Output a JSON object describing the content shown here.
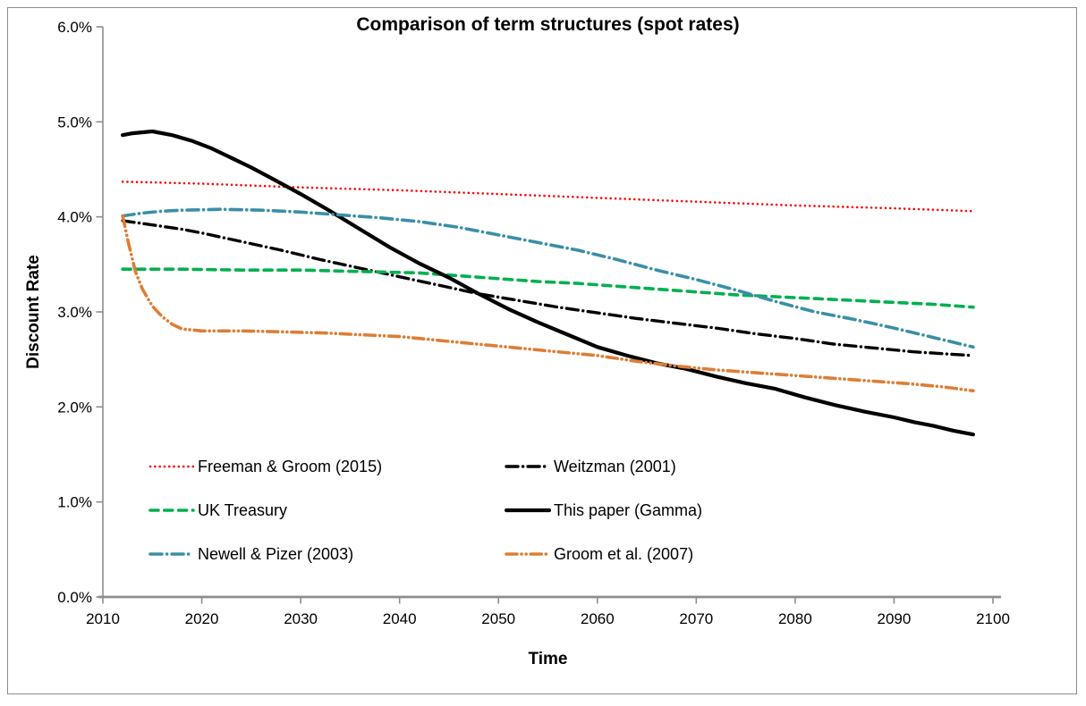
{
  "canvas": {
    "background": "#FFFFFF",
    "border_color": "#8C8C8C",
    "axis_color": "#8E8E8E",
    "tick_label_color": "#000000"
  },
  "chart_data": {
    "type": "line",
    "title": "Comparison of term structures (spot rates)",
    "xlabel": "Time",
    "ylabel": "Discount Rate",
    "xlim": [
      2010,
      2100
    ],
    "ylim": [
      0,
      6
    ],
    "grid": false,
    "legend_position": "inside bottom-left, two columns",
    "x_ticks": [
      2010,
      2020,
      2030,
      2040,
      2050,
      2060,
      2070,
      2080,
      2090,
      2100
    ],
    "x_tick_labels": [
      "2010",
      "2020",
      "2030",
      "2040",
      "2050",
      "2060",
      "2070",
      "2080",
      "2090",
      "2100"
    ],
    "y_ticks": [
      0,
      1,
      2,
      3,
      4,
      5,
      6
    ],
    "y_tick_labels": [
      "0.0%",
      "1.0%",
      "2.0%",
      "3.0%",
      "4.0%",
      "5.0%",
      "6.0%"
    ],
    "series": [
      {
        "name": "Freeman & Groom (2015)",
        "color": "#FF0000",
        "style": "dotted",
        "width": 2.6,
        "points": [
          [
            2012,
            4.37
          ],
          [
            2020,
            4.35
          ],
          [
            2030,
            4.31
          ],
          [
            2040,
            4.28
          ],
          [
            2050,
            4.24
          ],
          [
            2060,
            4.2
          ],
          [
            2070,
            4.16
          ],
          [
            2080,
            4.12
          ],
          [
            2090,
            4.09
          ],
          [
            2098,
            4.06
          ]
        ]
      },
      {
        "name": "Weitzman (2001)",
        "color": "#000000",
        "style": "dash-dot",
        "width": 3.4,
        "points": [
          [
            2012,
            3.96
          ],
          [
            2014,
            3.93
          ],
          [
            2016,
            3.9
          ],
          [
            2018,
            3.87
          ],
          [
            2020,
            3.83
          ],
          [
            2024,
            3.74
          ],
          [
            2028,
            3.65
          ],
          [
            2032,
            3.55
          ],
          [
            2036,
            3.46
          ],
          [
            2040,
            3.37
          ],
          [
            2044,
            3.28
          ],
          [
            2048,
            3.19
          ],
          [
            2052,
            3.12
          ],
          [
            2056,
            3.05
          ],
          [
            2060,
            2.99
          ],
          [
            2064,
            2.93
          ],
          [
            2068,
            2.88
          ],
          [
            2072,
            2.83
          ],
          [
            2076,
            2.77
          ],
          [
            2080,
            2.72
          ],
          [
            2084,
            2.66
          ],
          [
            2088,
            2.62
          ],
          [
            2092,
            2.58
          ],
          [
            2095,
            2.56
          ],
          [
            2098,
            2.54
          ]
        ]
      },
      {
        "name": "UK Treasury",
        "color": "#00B050",
        "style": "dashed",
        "width": 3.6,
        "points": [
          [
            2012,
            3.45
          ],
          [
            2018,
            3.45
          ],
          [
            2024,
            3.44
          ],
          [
            2030,
            3.44
          ],
          [
            2034,
            3.43
          ],
          [
            2038,
            3.42
          ],
          [
            2042,
            3.41
          ],
          [
            2046,
            3.38
          ],
          [
            2050,
            3.35
          ],
          [
            2054,
            3.32
          ],
          [
            2058,
            3.3
          ],
          [
            2062,
            3.27
          ],
          [
            2066,
            3.24
          ],
          [
            2070,
            3.21
          ],
          [
            2074,
            3.18
          ],
          [
            2078,
            3.16
          ],
          [
            2082,
            3.14
          ],
          [
            2086,
            3.12
          ],
          [
            2090,
            3.1
          ],
          [
            2094,
            3.08
          ],
          [
            2098,
            3.05
          ]
        ]
      },
      {
        "name": "This paper (Gamma)",
        "color": "#000000",
        "style": "solid",
        "width": 4.2,
        "points": [
          [
            2012,
            4.86
          ],
          [
            2013,
            4.88
          ],
          [
            2015,
            4.9
          ],
          [
            2017,
            4.86
          ],
          [
            2019,
            4.8
          ],
          [
            2021,
            4.72
          ],
          [
            2023,
            4.62
          ],
          [
            2025,
            4.52
          ],
          [
            2027,
            4.41
          ],
          [
            2030,
            4.24
          ],
          [
            2033,
            4.06
          ],
          [
            2036,
            3.87
          ],
          [
            2039,
            3.68
          ],
          [
            2042,
            3.51
          ],
          [
            2045,
            3.36
          ],
          [
            2048,
            3.19
          ],
          [
            2051,
            3.03
          ],
          [
            2054,
            2.89
          ],
          [
            2057,
            2.76
          ],
          [
            2060,
            2.63
          ],
          [
            2063,
            2.54
          ],
          [
            2066,
            2.46
          ],
          [
            2069,
            2.4
          ],
          [
            2072,
            2.32
          ],
          [
            2075,
            2.25
          ],
          [
            2078,
            2.19
          ],
          [
            2081,
            2.1
          ],
          [
            2084,
            2.02
          ],
          [
            2087,
            1.95
          ],
          [
            2090,
            1.89
          ],
          [
            2092,
            1.84
          ],
          [
            2094,
            1.8
          ],
          [
            2096,
            1.75
          ],
          [
            2098,
            1.71
          ]
        ]
      },
      {
        "name": "Newell & Pizer (2003)",
        "color": "#3A8FA6",
        "style": "dash-dot",
        "width": 3.6,
        "points": [
          [
            2012,
            4.01
          ],
          [
            2014,
            4.04
          ],
          [
            2016,
            4.06
          ],
          [
            2018,
            4.07
          ],
          [
            2022,
            4.08
          ],
          [
            2026,
            4.07
          ],
          [
            2030,
            4.05
          ],
          [
            2034,
            4.02
          ],
          [
            2038,
            3.99
          ],
          [
            2042,
            3.95
          ],
          [
            2046,
            3.89
          ],
          [
            2050,
            3.81
          ],
          [
            2054,
            3.73
          ],
          [
            2058,
            3.65
          ],
          [
            2062,
            3.55
          ],
          [
            2066,
            3.44
          ],
          [
            2070,
            3.34
          ],
          [
            2074,
            3.23
          ],
          [
            2078,
            3.11
          ],
          [
            2082,
            3.0
          ],
          [
            2086,
            2.92
          ],
          [
            2090,
            2.83
          ],
          [
            2094,
            2.73
          ],
          [
            2098,
            2.63
          ]
        ]
      },
      {
        "name": "Groom et al. (2007)",
        "color": "#DE7E35",
        "style": "dash-dot-dot",
        "width": 3.6,
        "points": [
          [
            2012,
            4.01
          ],
          [
            2012.6,
            3.72
          ],
          [
            2013.3,
            3.42
          ],
          [
            2014,
            3.24
          ],
          [
            2015,
            3.06
          ],
          [
            2016,
            2.95
          ],
          [
            2017,
            2.87
          ],
          [
            2018,
            2.82
          ],
          [
            2020,
            2.8
          ],
          [
            2024,
            2.8
          ],
          [
            2028,
            2.79
          ],
          [
            2032,
            2.78
          ],
          [
            2036,
            2.76
          ],
          [
            2040,
            2.74
          ],
          [
            2044,
            2.7
          ],
          [
            2048,
            2.66
          ],
          [
            2052,
            2.62
          ],
          [
            2056,
            2.58
          ],
          [
            2060,
            2.54
          ],
          [
            2064,
            2.48
          ],
          [
            2068,
            2.43
          ],
          [
            2072,
            2.39
          ],
          [
            2076,
            2.36
          ],
          [
            2080,
            2.33
          ],
          [
            2084,
            2.3
          ],
          [
            2088,
            2.27
          ],
          [
            2092,
            2.24
          ],
          [
            2095,
            2.21
          ],
          [
            2098,
            2.17
          ]
        ]
      }
    ]
  }
}
